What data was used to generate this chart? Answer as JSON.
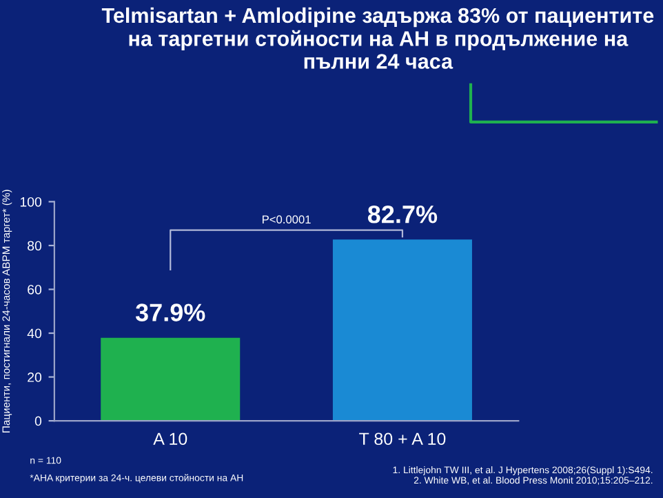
{
  "chart_data": {
    "type": "bar",
    "title": "Telmisartan + Amlodipine задържа 83% от пациентите на таргетни стойности на АН в продължение на пълни 24 часа",
    "ylabel": "Пациенти, постигнали 24-часов ABPM таргет* (%)",
    "categories": [
      "A 10",
      "T 80 + A 10"
    ],
    "values": [
      37.9,
      82.7
    ],
    "colors": [
      "#1fb14f",
      "#1a8ad4"
    ],
    "value_labels": [
      "37.9%",
      "82.7%"
    ],
    "ylim": [
      0,
      100
    ],
    "yticks": [
      0,
      20,
      40,
      60,
      80,
      100
    ],
    "grid": false,
    "legend": false,
    "annotations": [
      "P<0.0001",
      "n = 110",
      "*AHA критерии за 24-ч. целеви стойности на АН",
      "1. Littlejohn TW III, et al. J Hypertens 2008;26(Suppl 1):S494.\n2. White WB, et al. Blood Press Monit 2010;15:205–212."
    ]
  }
}
